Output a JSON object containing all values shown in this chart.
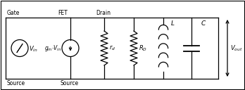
{
  "bg_color": "#ffffff",
  "line_color": "#000000",
  "labels": {
    "drain": "Drain",
    "fet": "FET",
    "gate": "Gate",
    "source1": "Source",
    "source2": "Source",
    "gm_vin": "$g_m{\\cdot}V_{in}$",
    "vin": "$V_{in}$",
    "rd": "$r_d$",
    "RD": "$R_D$",
    "L": "$L$",
    "C": "$C$",
    "Vout": "$V_{out}$"
  },
  "figsize": [
    3.48,
    1.28
  ],
  "dpi": 100
}
